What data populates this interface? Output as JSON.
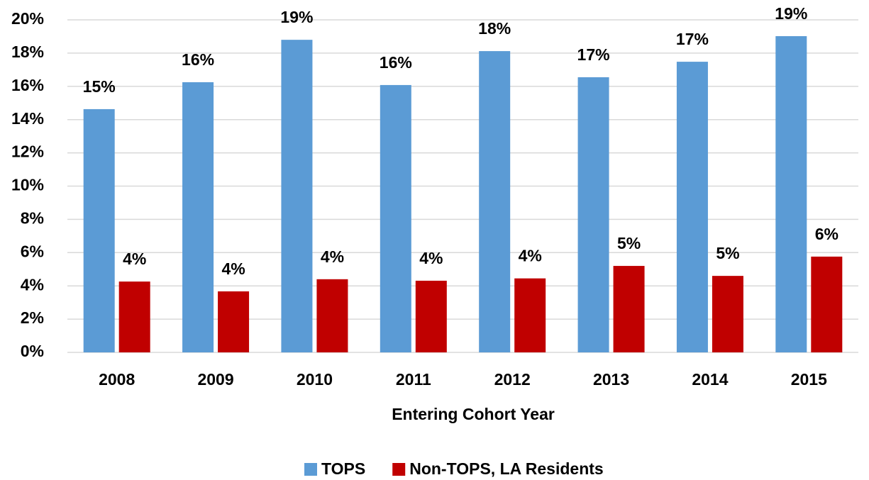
{
  "chart_data": {
    "type": "bar",
    "x_label": "Entering Cohort Year",
    "categories": [
      "2008",
      "2009",
      "2010",
      "2011",
      "2012",
      "2013",
      "2014",
      "2015"
    ],
    "series": [
      {
        "name": "TOPS",
        "color": "#5b9bd5",
        "values": [
          14.63,
          16.25,
          18.8,
          16.08,
          18.12,
          16.55,
          17.48,
          19.02
        ],
        "value_labels": [
          "15%",
          "16%",
          "19%",
          "16%",
          "18%",
          "17%",
          "17%",
          "19%"
        ]
      },
      {
        "name": "Non-TOPS, LA Residents",
        "color": "#c00000",
        "values": [
          4.26,
          3.67,
          4.4,
          4.31,
          4.45,
          5.2,
          4.6,
          5.76
        ],
        "value_labels": [
          "4%",
          "4%",
          "4%",
          "4%",
          "4%",
          "5%",
          "5%",
          "6%"
        ]
      }
    ],
    "ylim": [
      0,
      20
    ],
    "yticks": [
      {
        "value": 0,
        "label": "0%"
      },
      {
        "value": 2,
        "label": "2%"
      },
      {
        "value": 4,
        "label": "4%"
      },
      {
        "value": 6,
        "label": "6%"
      },
      {
        "value": 8,
        "label": "8%"
      },
      {
        "value": 10,
        "label": "10%"
      },
      {
        "value": 12,
        "label": "12%"
      },
      {
        "value": 14,
        "label": "14%"
      },
      {
        "value": 16,
        "label": "16%"
      },
      {
        "value": 18,
        "label": "18%"
      },
      {
        "value": 20,
        "label": "20%"
      }
    ],
    "grid": true,
    "legend": "bottom"
  }
}
